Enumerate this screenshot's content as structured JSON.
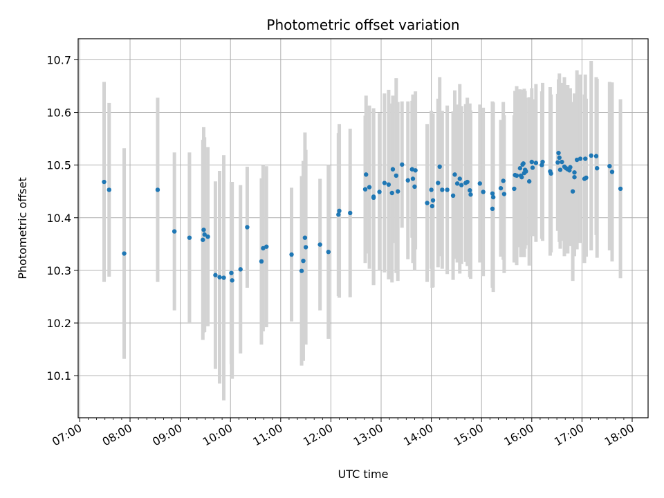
{
  "chart_data": {
    "type": "scatter",
    "title": "Photometric offset variation",
    "xlabel": "UTC time",
    "ylabel": "Photometric offset",
    "x_ticks": [
      "07:00",
      "08:00",
      "09:00",
      "10:00",
      "11:00",
      "12:00",
      "13:00",
      "14:00",
      "15:00",
      "16:00",
      "17:00",
      "18:00"
    ],
    "y_ticks": [
      "10.1",
      "10.2",
      "10.3",
      "10.4",
      "10.5",
      "10.6",
      "10.7"
    ],
    "xlim": [
      "06:58",
      "18:19"
    ],
    "ylim": [
      10.02,
      10.74
    ],
    "grid": true,
    "colors": {
      "point": "#1f77b4",
      "errorbar": "#d3d3d3",
      "grid": "#b0b0b0"
    },
    "series": [
      {
        "x": [
          "07:29",
          "07:35",
          "07:53",
          "08:33",
          "08:53",
          "09:11",
          "09:27",
          "09:28",
          "09:29",
          "09:33",
          "09:42",
          "09:47",
          "09:52",
          "10:01",
          "10:02",
          "10:12",
          "10:20",
          "10:37",
          "10:39",
          "10:43",
          "11:13",
          "11:25",
          "11:27",
          "11:29",
          "11:30",
          "11:47",
          "11:57",
          "12:09",
          "12:10",
          "12:23",
          "12:41",
          "12:42",
          "12:46",
          "12:51",
          "12:51",
          "12:58",
          "13:04",
          "13:09",
          "13:13",
          "13:14",
          "13:18",
          "13:20",
          "13:25",
          "13:32",
          "13:37",
          "13:38",
          "13:40",
          "13:41",
          "13:55",
          "14:00",
          "14:01",
          "14:02",
          "14:08",
          "14:10",
          "14:13",
          "14:19",
          "14:26",
          "14:28",
          "14:31",
          "14:34",
          "14:36",
          "14:41",
          "14:43",
          "14:46",
          "14:47",
          "14:58",
          "15:02",
          "15:13",
          "15:13",
          "15:14",
          "15:23",
          "15:26",
          "15:27",
          "15:39",
          "15:40",
          "15:42",
          "15:46",
          "15:47",
          "15:48",
          "15:49",
          "15:50",
          "15:51",
          "15:52",
          "15:53",
          "15:57",
          "16:00",
          "16:01",
          "16:05",
          "16:12",
          "16:13",
          "16:22",
          "16:23",
          "16:31",
          "16:32",
          "16:33",
          "16:34",
          "16:36",
          "16:39",
          "16:41",
          "16:43",
          "16:45",
          "16:46",
          "16:49",
          "16:51",
          "16:51",
          "16:54",
          "16:58",
          "17:03",
          "17:04",
          "17:05",
          "17:11",
          "17:17",
          "17:18",
          "17:33",
          "17:36",
          "17:46"
        ],
        "y": [
          10.468,
          10.453,
          10.332,
          10.453,
          10.374,
          10.362,
          10.358,
          10.377,
          10.368,
          10.364,
          10.291,
          10.287,
          10.286,
          10.295,
          10.281,
          10.302,
          10.382,
          10.317,
          10.342,
          10.345,
          10.33,
          10.299,
          10.318,
          10.362,
          10.344,
          10.349,
          10.335,
          10.406,
          10.413,
          10.409,
          10.454,
          10.482,
          10.458,
          10.44,
          10.438,
          10.449,
          10.466,
          10.463,
          10.447,
          10.492,
          10.48,
          10.45,
          10.501,
          10.471,
          10.492,
          10.474,
          10.459,
          10.49,
          10.428,
          10.453,
          10.422,
          10.433,
          10.466,
          10.497,
          10.453,
          10.453,
          10.442,
          10.482,
          10.465,
          10.474,
          10.462,
          10.466,
          10.468,
          10.452,
          10.444,
          10.465,
          10.449,
          10.417,
          10.446,
          10.439,
          10.456,
          10.47,
          10.445,
          10.455,
          10.481,
          10.48,
          10.494,
          10.48,
          10.477,
          10.501,
          10.503,
          10.485,
          10.491,
          10.488,
          10.469,
          10.506,
          10.495,
          10.504,
          10.5,
          10.506,
          10.488,
          10.484,
          10.505,
          10.523,
          10.514,
          10.491,
          10.506,
          10.497,
          10.494,
          10.492,
          10.49,
          10.496,
          10.45,
          10.486,
          10.477,
          10.51,
          10.512,
          10.474,
          10.512,
          10.476,
          10.518,
          10.517,
          10.494,
          10.498,
          10.487,
          10.455
        ],
        "yerr": [
          0.19,
          0.165,
          0.2,
          0.175,
          0.15,
          0.162,
          0.19,
          0.195,
          0.185,
          0.17,
          0.178,
          0.202,
          0.233,
          0.173,
          0.187,
          0.16,
          0.115,
          0.158,
          0.158,
          0.153,
          0.127,
          0.18,
          0.19,
          0.2,
          0.185,
          0.125,
          0.165,
          0.155,
          0.165,
          0.16,
          0.14,
          0.15,
          0.155,
          0.168,
          0.165,
          0.15,
          0.17,
          0.18,
          0.17,
          0.14,
          0.185,
          0.17,
          0.12,
          0.15,
          0.13,
          0.16,
          0.16,
          0.15,
          0.15,
          0.15,
          0.155,
          0.165,
          0.16,
          0.17,
          0.15,
          0.16,
          0.16,
          0.16,
          0.15,
          0.18,
          0.15,
          0.15,
          0.16,
          0.165,
          0.16,
          0.15,
          0.16,
          0.15,
          0.175,
          0.18,
          0.13,
          0.15,
          0.15,
          0.14,
          0.16,
          0.17,
          0.15,
          0.155,
          0.15,
          0.13,
          0.14,
          0.16,
          0.15,
          0.14,
          0.16,
          0.14,
          0.13,
          0.15,
          0.14,
          0.15,
          0.16,
          0.15,
          0.13,
          0.14,
          0.16,
          0.15,
          0.15,
          0.17,
          0.15,
          0.16,
          0.14,
          0.15,
          0.17,
          0.15,
          0.15,
          0.17,
          0.16,
          0.16,
          0.16,
          0.15,
          0.18,
          0.15,
          0.17,
          0.16,
          0.17,
          0.17
        ]
      }
    ]
  }
}
